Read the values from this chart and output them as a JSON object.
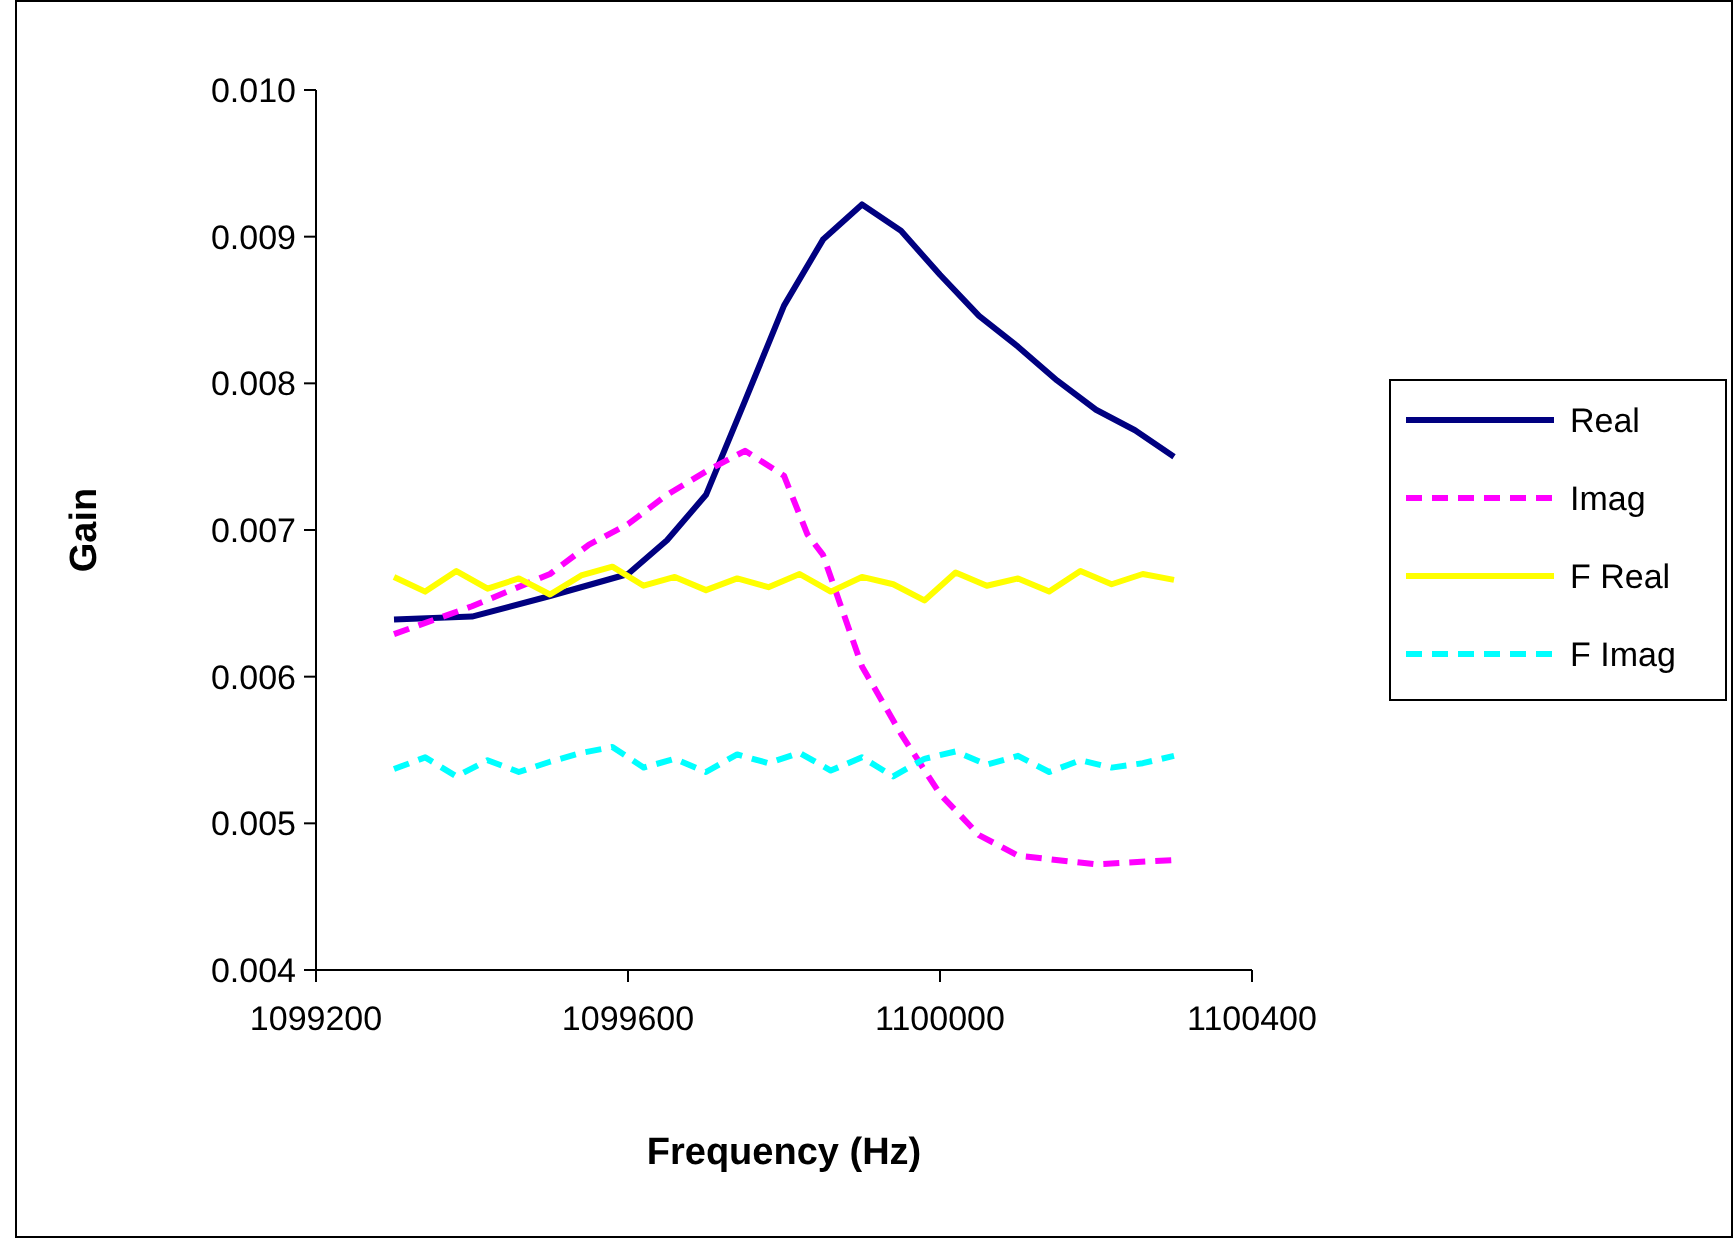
{
  "chart_data": {
    "type": "line",
    "xlabel": "Frequency (Hz)",
    "ylabel": "Gain",
    "xlim": [
      1099200,
      1100400
    ],
    "xticks": [
      1099200,
      1099600,
      1100000,
      1100400
    ],
    "ylim": [
      0.004,
      0.01
    ],
    "yticks": [
      {
        "value": 0.004,
        "label": "0.004"
      },
      {
        "value": 0.005,
        "label": "0.005"
      },
      {
        "value": 0.006,
        "label": "0.006"
      },
      {
        "value": 0.007,
        "label": "0.007"
      },
      {
        "value": 0.008,
        "label": "0.008"
      },
      {
        "value": 0.009,
        "label": "0.009"
      },
      {
        "value": 0.01,
        "label": "0.010"
      }
    ],
    "grid": false,
    "legend": "right",
    "marker": "none",
    "series": [
      {
        "name": "Real",
        "color": "#000080",
        "line_style": "solid",
        "x": [
          1099300,
          1099400,
          1099500,
          1099600,
          1099650,
          1099700,
          1099750,
          1099800,
          1099850,
          1099900,
          1099950,
          1100000,
          1100050,
          1100100,
          1100150,
          1100200,
          1100250,
          1100300
        ],
        "values": [
          0.00639,
          0.00641,
          0.00655,
          0.0067,
          0.00693,
          0.00724,
          0.00788,
          0.00853,
          0.00898,
          0.00922,
          0.00904,
          0.00874,
          0.00846,
          0.00825,
          0.00802,
          0.00782,
          0.00768,
          0.0075
        ]
      },
      {
        "name": "Imag",
        "color": "#ff00ff",
        "line_style": "dashed",
        "x": [
          1099300,
          1099400,
          1099500,
          1099550,
          1099600,
          1099650,
          1099700,
          1099750,
          1099800,
          1099830,
          1099850,
          1099900,
          1099950,
          1100000,
          1100050,
          1100100,
          1100200,
          1100300
        ],
        "values": [
          0.00629,
          0.00648,
          0.0067,
          0.0069,
          0.00704,
          0.00724,
          0.0074,
          0.00754,
          0.00737,
          0.00697,
          0.00683,
          0.00607,
          0.00561,
          0.0052,
          0.00492,
          0.00478,
          0.00472,
          0.00475
        ]
      },
      {
        "name": "F Real",
        "color": "#ffff00",
        "line_style": "solid",
        "x": [
          1099300,
          1099340,
          1099380,
          1099420,
          1099460,
          1099500,
          1099540,
          1099580,
          1099620,
          1099660,
          1099700,
          1099740,
          1099780,
          1099820,
          1099860,
          1099900,
          1099940,
          1099980,
          1100020,
          1100060,
          1100100,
          1100140,
          1100180,
          1100220,
          1100260,
          1100300
        ],
        "values": [
          0.00668,
          0.00658,
          0.00672,
          0.0066,
          0.00667,
          0.00656,
          0.00669,
          0.00675,
          0.00662,
          0.00668,
          0.00659,
          0.00667,
          0.00661,
          0.0067,
          0.00658,
          0.00668,
          0.00663,
          0.00652,
          0.00671,
          0.00662,
          0.00667,
          0.00658,
          0.00672,
          0.00663,
          0.0067,
          0.00666
        ]
      },
      {
        "name": "F Imag",
        "color": "#00ffff",
        "line_style": "dashed",
        "x": [
          1099300,
          1099340,
          1099380,
          1099420,
          1099460,
          1099500,
          1099540,
          1099580,
          1099620,
          1099660,
          1099700,
          1099740,
          1099780,
          1099820,
          1099860,
          1099900,
          1099940,
          1099980,
          1100020,
          1100060,
          1100100,
          1100140,
          1100180,
          1100220,
          1100260,
          1100300
        ],
        "values": [
          0.00537,
          0.00545,
          0.00532,
          0.00543,
          0.00535,
          0.00542,
          0.00548,
          0.00552,
          0.00538,
          0.00544,
          0.00535,
          0.00547,
          0.00541,
          0.00548,
          0.00536,
          0.00545,
          0.00532,
          0.00544,
          0.00549,
          0.0054,
          0.00546,
          0.00535,
          0.00543,
          0.00538,
          0.00541,
          0.00546
        ]
      }
    ]
  }
}
